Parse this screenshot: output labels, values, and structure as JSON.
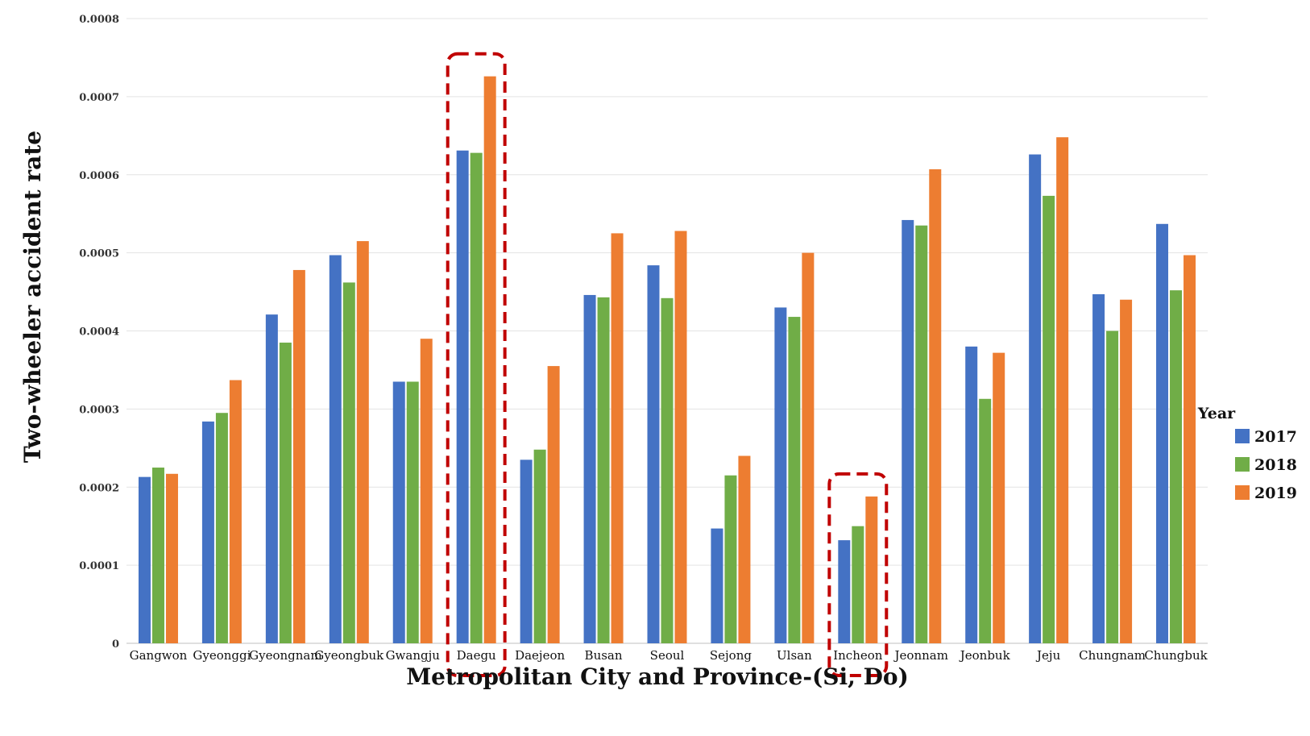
{
  "chart_data": {
    "type": "bar",
    "title": "",
    "xlabel": "Metropolitan City and Province-(Si, Do)",
    "ylabel": "Two-wheeler accident rate",
    "ylim": [
      0,
      0.0008
    ],
    "yticks": [
      "0",
      "0.0001",
      "0.0002",
      "0.0003",
      "0.0004",
      "0.0005",
      "0.0006",
      "0.0007",
      "0.0008"
    ],
    "grid": true,
    "legend": {
      "title": "Year",
      "placement": "right"
    },
    "categories": [
      "Gangwon",
      "Gyeonggi",
      "Gyeongnam",
      "Gyeongbuk",
      "Gwangju",
      "Daegu",
      "Daejeon",
      "Busan",
      "Seoul",
      "Sejong",
      "Ulsan",
      "Incheon",
      "Jeonnam",
      "Jeonbuk",
      "Jeju",
      "Chungnam",
      "Chungbuk"
    ],
    "series": [
      {
        "name": "2017",
        "color": "#4472C4",
        "values": [
          0.000213,
          0.000284,
          0.000421,
          0.000497,
          0.000335,
          0.000631,
          0.000235,
          0.000446,
          0.000484,
          0.000147,
          0.00043,
          0.000132,
          0.000542,
          0.00038,
          0.000626,
          0.000447,
          0.000537
        ]
      },
      {
        "name": "2018",
        "color": "#70AD47",
        "values": [
          0.000225,
          0.000295,
          0.000385,
          0.000462,
          0.000335,
          0.000628,
          0.000248,
          0.000443,
          0.000442,
          0.000215,
          0.000418,
          0.00015,
          0.000535,
          0.000313,
          0.000573,
          0.0004,
          0.000452
        ]
      },
      {
        "name": "2019",
        "color": "#ED7D31",
        "values": [
          0.000217,
          0.000337,
          0.000478,
          0.000515,
          0.00039,
          0.000726,
          0.000355,
          0.000525,
          0.000528,
          0.00024,
          0.0005,
          0.000188,
          0.000607,
          0.000372,
          0.000648,
          0.00044,
          0.000497
        ]
      }
    ],
    "highlights": [
      {
        "category": "Daegu",
        "style": "dashed",
        "color": "#C00000"
      },
      {
        "category": "Incheon",
        "style": "dashed",
        "color": "#C00000"
      }
    ]
  }
}
